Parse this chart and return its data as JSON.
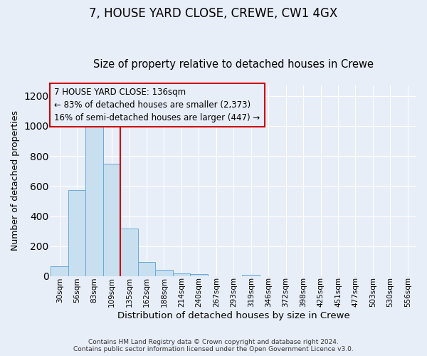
{
  "title1": "7, HOUSE YARD CLOSE, CREWE, CW1 4GX",
  "title2": "Size of property relative to detached houses in Crewe",
  "xlabel": "Distribution of detached houses by size in Crewe",
  "ylabel": "Number of detached properties",
  "categories": [
    "30sqm",
    "56sqm",
    "83sqm",
    "109sqm",
    "135sqm",
    "162sqm",
    "188sqm",
    "214sqm",
    "240sqm",
    "267sqm",
    "293sqm",
    "319sqm",
    "346sqm",
    "372sqm",
    "398sqm",
    "425sqm",
    "451sqm",
    "477sqm",
    "503sqm",
    "530sqm",
    "556sqm"
  ],
  "values": [
    65,
    575,
    1005,
    748,
    315,
    95,
    40,
    18,
    13,
    0,
    0,
    10,
    0,
    0,
    0,
    0,
    0,
    0,
    0,
    0,
    0
  ],
  "bar_color": "#c8dff0",
  "bar_edge_color": "#6aaad4",
  "vline_color": "#cc0000",
  "vline_pos": 3.5,
  "annotation_line1": "7 HOUSE YARD CLOSE: 136sqm",
  "annotation_line2": "← 83% of detached houses are smaller (2,373)",
  "annotation_line3": "16% of semi-detached houses are larger (447) →",
  "ann_box_edge_color": "#cc0000",
  "ylim": [
    0,
    1270
  ],
  "yticks": [
    0,
    200,
    400,
    600,
    800,
    1000,
    1200
  ],
  "footer1": "Contains HM Land Registry data © Crown copyright and database right 2024.",
  "footer2": "Contains public sector information licensed under the Open Government Licence v3.0.",
  "bg_color": "#e8eef8",
  "title1_fontsize": 12,
  "title2_fontsize": 10.5
}
